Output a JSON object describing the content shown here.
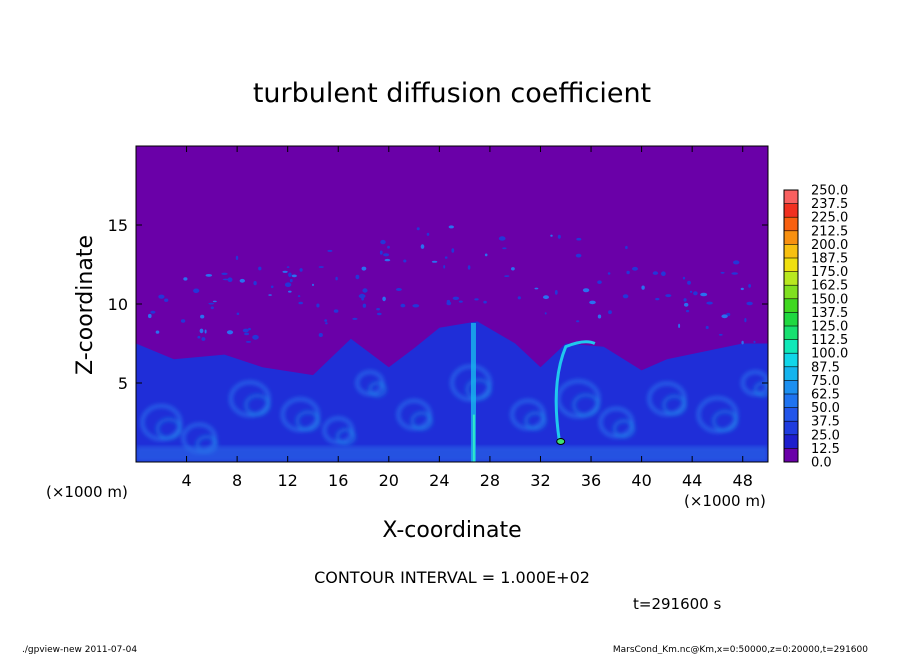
{
  "chart_data": {
    "type": "heatmap",
    "title": "turbulent diffusion coefficient",
    "xlabel": "X-coordinate",
    "ylabel": "Z-coordinate",
    "x_unit": "(×1000 m)",
    "y_unit": "(×1000 m)",
    "xlim": [
      0,
      50
    ],
    "ylim": [
      0,
      20
    ],
    "x_ticks": [
      4,
      8,
      12,
      16,
      20,
      24,
      28,
      32,
      36,
      40,
      44,
      48
    ],
    "y_ticks": [
      5,
      10,
      15
    ],
    "colorbar": {
      "levels": [
        "0.0",
        "12.5",
        "25.0",
        "37.5",
        "50.0",
        "62.5",
        "75.0",
        "87.5",
        "100.0",
        "112.5",
        "125.0",
        "137.5",
        "150.0",
        "162.5",
        "175.0",
        "187.5",
        "200.0",
        "212.5",
        "225.0",
        "237.5",
        "250.0"
      ],
      "colors": [
        "#6a00a8",
        "#1e1ecd",
        "#1f3cdf",
        "#2255ea",
        "#1f73f0",
        "#1c8ff0",
        "#14b4ee",
        "#10d6e8",
        "#10e8b8",
        "#18e070",
        "#20d840",
        "#40d820",
        "#80e020",
        "#b8e820",
        "#f0e010",
        "#f8c010",
        "#f89010",
        "#f86010",
        "#f03020",
        "#f86060"
      ]
    },
    "plume_tops_km": [
      {
        "x": 0,
        "z": 7.5
      },
      {
        "x": 3,
        "z": 6.5
      },
      {
        "x": 7,
        "z": 6.8
      },
      {
        "x": 10,
        "z": 6.0
      },
      {
        "x": 14,
        "z": 5.5
      },
      {
        "x": 17,
        "z": 7.8
      },
      {
        "x": 20,
        "z": 6.0
      },
      {
        "x": 22,
        "z": 7.2
      },
      {
        "x": 24,
        "z": 8.5
      },
      {
        "x": 27,
        "z": 8.9
      },
      {
        "x": 30,
        "z": 7.5
      },
      {
        "x": 32,
        "z": 6.0
      },
      {
        "x": 34,
        "z": 7.5
      },
      {
        "x": 37,
        "z": 7.3
      },
      {
        "x": 40,
        "z": 5.8
      },
      {
        "x": 42,
        "z": 6.5
      },
      {
        "x": 45,
        "z": 7.0
      },
      {
        "x": 48,
        "z": 7.5
      },
      {
        "x": 50,
        "z": 7.5
      }
    ],
    "annotations": {
      "contour_interval": "CONTOUR INTERVAL = 1.000E+02",
      "time": "t=291600 s"
    }
  },
  "footer": {
    "left": "./gpview-new  2011-07-04",
    "right": "MarsCond_Km.nc@Km,x=0:50000,z=0:20000,t=291600"
  }
}
